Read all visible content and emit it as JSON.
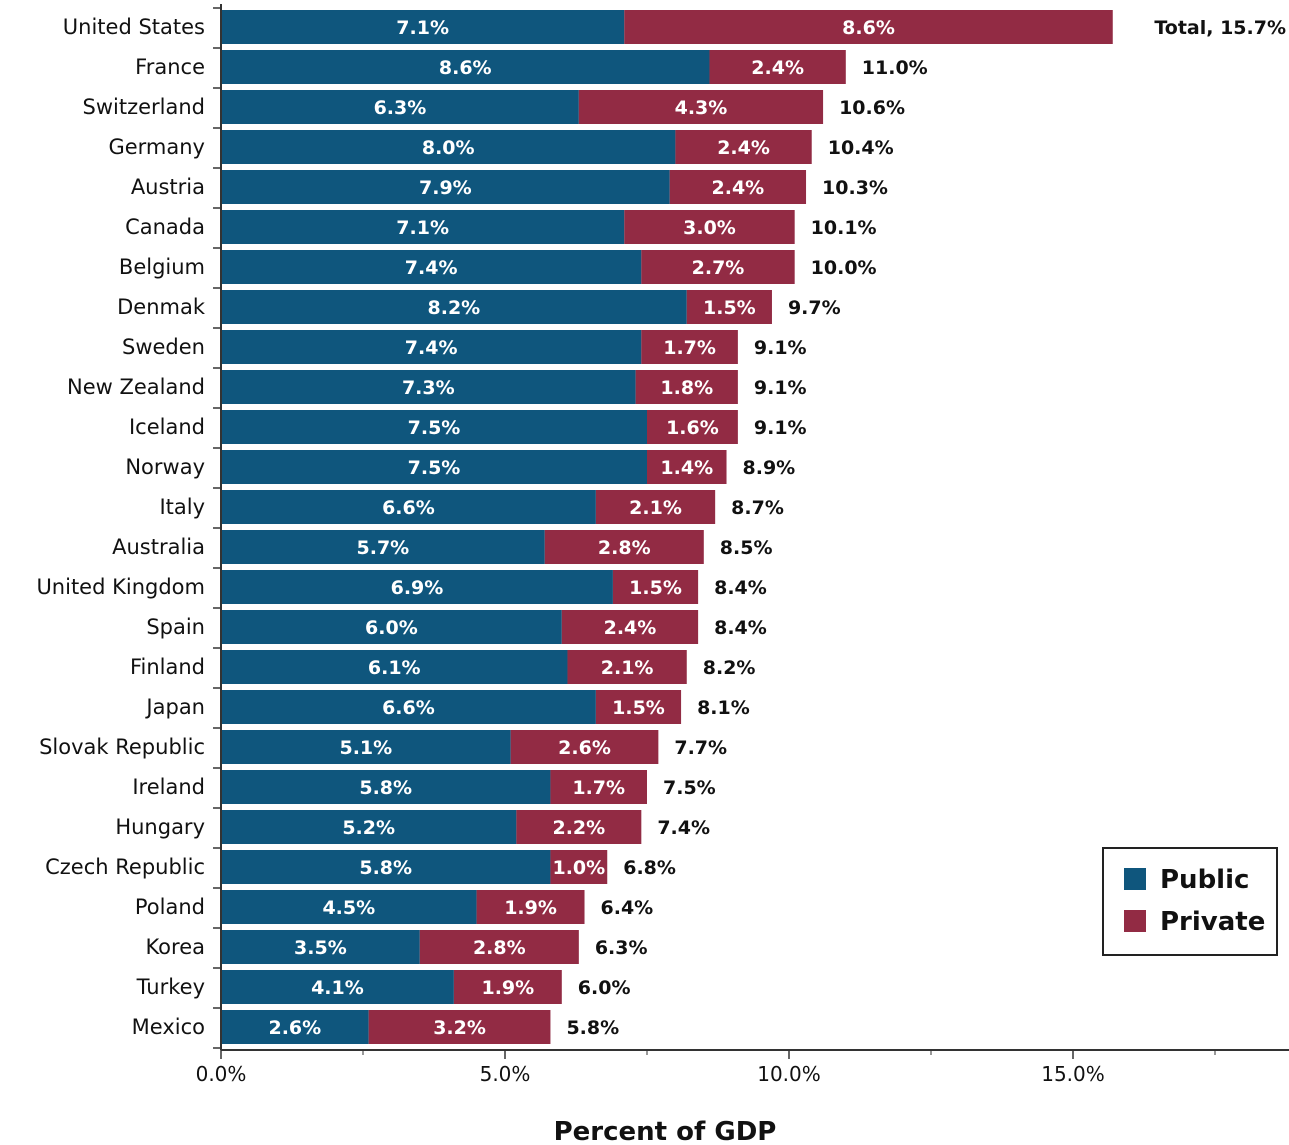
{
  "chart_data": {
    "type": "bar",
    "orientation": "horizontal",
    "stacked": true,
    "title": "",
    "xlabel": "Percent of GDP",
    "ylabel": "",
    "xlim": [
      0,
      18.8
    ],
    "x_ticks": [
      0,
      5,
      10,
      15
    ],
    "x_tick_labels": [
      "0.0%",
      "5.0%",
      "10.0%",
      "15.0%"
    ],
    "grid": false,
    "legend_position": "bottom-right",
    "categories": [
      "United States",
      "France",
      "Switzerland",
      "Germany",
      "Austria",
      "Canada",
      "Belgium",
      "Denmak",
      "Sweden",
      "New Zealand",
      "Iceland",
      "Norway",
      "Italy",
      "Australia",
      "United Kingdom",
      "Spain",
      "Finland",
      "Japan",
      "Slovak Republic",
      "Ireland",
      "Hungary",
      "Czech Republic",
      "Poland",
      "Korea",
      "Turkey",
      "Mexico"
    ],
    "series": [
      {
        "name": "Public",
        "color": "#0f567d",
        "values": [
          7.1,
          8.6,
          6.3,
          8.0,
          7.9,
          7.1,
          7.4,
          8.2,
          7.4,
          7.3,
          7.5,
          7.5,
          6.6,
          5.7,
          6.9,
          6.0,
          6.1,
          6.6,
          5.1,
          5.8,
          5.2,
          5.8,
          4.5,
          3.5,
          4.1,
          2.6
        ],
        "labels": [
          "7.1%",
          "8.6%",
          "6.3%",
          "8.0%",
          "7.9%",
          "7.1%",
          "7.4%",
          "8.2%",
          "7.4%",
          "7.3%",
          "7.5%",
          "7.5%",
          "6.6%",
          "5.7%",
          "6.9%",
          "6.0%",
          "6.1%",
          "6.6%",
          "5.1%",
          "5.8%",
          "5.2%",
          "5.8%",
          "4.5%",
          "3.5%",
          "4.1%",
          "2.6%"
        ]
      },
      {
        "name": "Private",
        "color": "#922b44",
        "values": [
          8.6,
          2.4,
          4.3,
          2.4,
          2.4,
          3.0,
          2.7,
          1.5,
          1.7,
          1.8,
          1.6,
          1.4,
          2.1,
          2.8,
          1.5,
          2.4,
          2.1,
          1.5,
          2.6,
          1.7,
          2.2,
          1.0,
          1.9,
          2.8,
          1.9,
          3.2
        ],
        "labels": [
          "8.6%",
          "2.4%",
          "4.3%",
          "2.4%",
          "2.4%",
          "3.0%",
          "2.7%",
          "1.5%",
          "1.7%",
          "1.8%",
          "1.6%",
          "1.4%",
          "2.1%",
          "2.8%",
          "1.5%",
          "2.4%",
          "2.1%",
          "1.5%",
          "2.6%",
          "1.7%",
          "2.2%",
          "1.0%",
          "1.9%",
          "2.8%",
          "1.9%",
          "3.2%"
        ]
      }
    ],
    "totals": [
      15.7,
      11.0,
      10.6,
      10.4,
      10.3,
      10.1,
      10.0,
      9.7,
      9.1,
      9.1,
      9.1,
      8.9,
      8.7,
      8.5,
      8.4,
      8.4,
      8.2,
      8.1,
      7.7,
      7.5,
      7.4,
      6.8,
      6.4,
      6.3,
      6.0,
      5.8
    ],
    "total_labels": [
      "Total, 15.7%",
      "11.0%",
      "10.6%",
      "10.4%",
      "10.3%",
      "10.1%",
      "10.0%",
      "9.7%",
      "9.1%",
      "9.1%",
      "9.1%",
      "8.9%",
      "8.7%",
      "8.5%",
      "8.4%",
      "8.4%",
      "8.2%",
      "8.1%",
      "7.7%",
      "7.5%",
      "7.4%",
      "6.8%",
      "6.4%",
      "6.3%",
      "6.0%",
      "5.8%"
    ]
  }
}
